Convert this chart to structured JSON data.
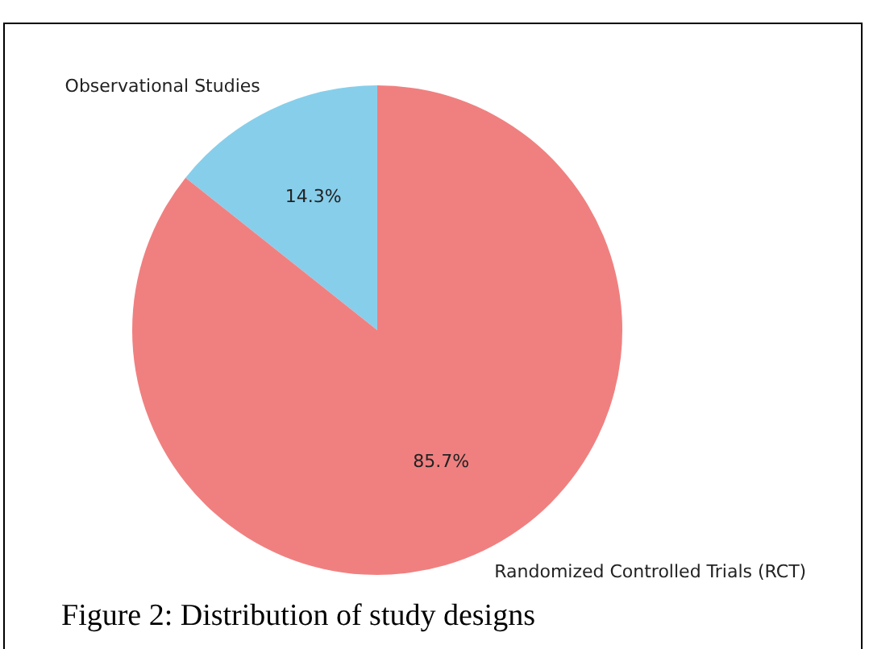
{
  "chart_data": {
    "type": "pie",
    "categories": [
      "Observational Studies",
      "Randomized Controlled Trials (RCT)"
    ],
    "values": [
      14.3,
      85.7
    ],
    "colors": [
      "#87ceeb",
      "#f08080"
    ],
    "value_labels": [
      "14.3%",
      "85.7%"
    ],
    "annotations": [
      "Figure 2: Distribution of study designs"
    ]
  }
}
